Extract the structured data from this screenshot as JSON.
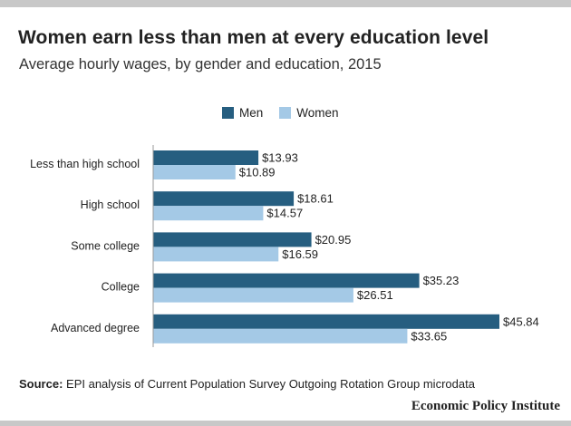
{
  "header": {
    "title": "Women earn less than men at every education level",
    "subtitle": "Average hourly wages, by gender and education, 2015"
  },
  "footer": {
    "source_label": "Source:",
    "source_text": " EPI analysis of Current Population Survey Outgoing Rotation Group microdata",
    "brand": "Economic Policy Institute"
  },
  "colors": {
    "men": "#265e80",
    "women": "#a4c9e6",
    "axis": "#999999"
  },
  "chart_data": {
    "type": "bar",
    "orientation": "horizontal",
    "title": "Women earn less than men at every education level",
    "subtitle": "Average hourly wages, by gender and education, 2015",
    "categories": [
      "Less than high school",
      "High school",
      "Some college",
      "College",
      "Advanced degree"
    ],
    "series": [
      {
        "name": "Men",
        "values": [
          13.93,
          18.61,
          20.95,
          35.23,
          45.84
        ],
        "labels": [
          "$13.93",
          "$18.61",
          "$20.95",
          "$35.23",
          "$45.84"
        ]
      },
      {
        "name": "Women",
        "values": [
          10.89,
          14.57,
          16.59,
          26.51,
          33.65
        ],
        "labels": [
          "$10.89",
          "$14.57",
          "$16.59",
          "$26.51",
          "$33.65"
        ]
      }
    ],
    "xlim": [
      0,
      46
    ],
    "legend": "top",
    "grid": false
  }
}
